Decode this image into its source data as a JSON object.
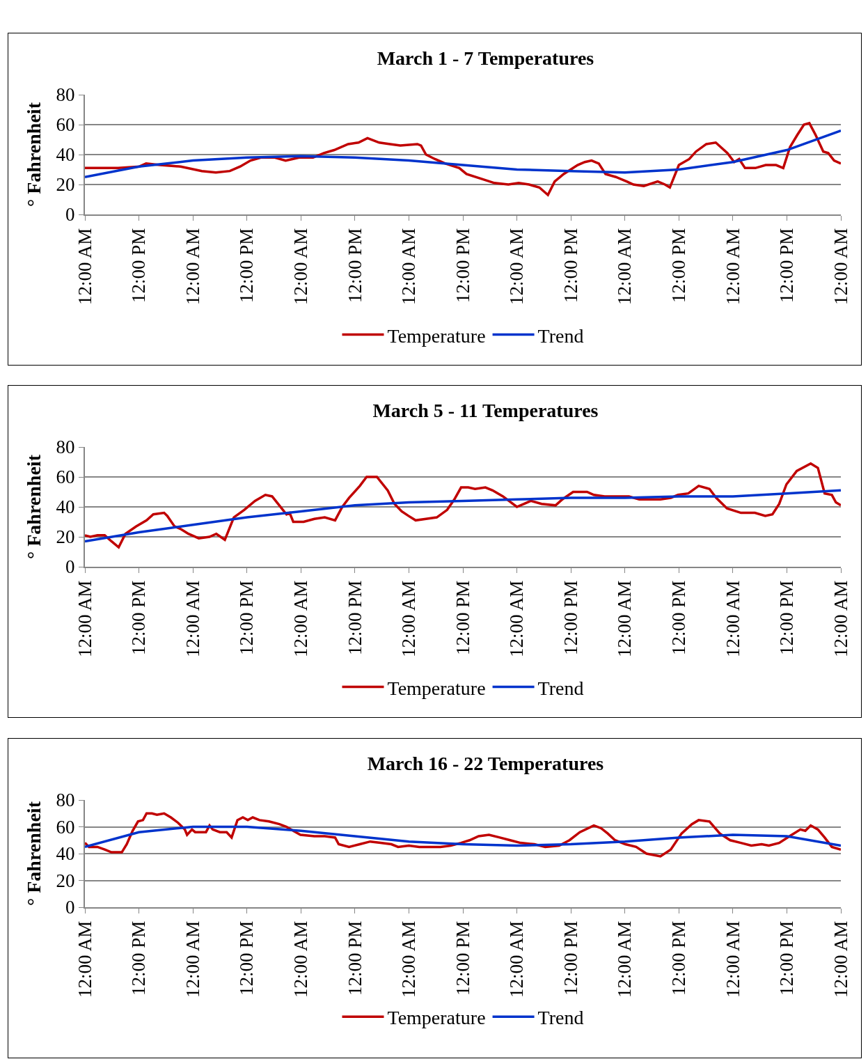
{
  "chart_data": [
    {
      "type": "line",
      "title": "March 1 - 7 Temperatures",
      "ylabel": "° Fahrenheit",
      "xlim": [
        "--03-01T00:00",
        "--03-08T00:00"
      ],
      "ylim": [
        0,
        80
      ],
      "yticks": [
        0,
        20,
        40,
        60,
        80
      ],
      "xticks": [
        {
          "value": "--03-01T00:00",
          "label": "12:00 AM"
        },
        {
          "value": "--03-01T12:00",
          "label": "12:00 PM"
        },
        {
          "value": "--03-02T00:00",
          "label": "12:00 AM"
        },
        {
          "value": "--03-02T12:00",
          "label": "12:00 PM"
        },
        {
          "value": "--03-03T00:00",
          "label": "12:00 AM"
        },
        {
          "value": "--03-03T12:00",
          "label": "12:00 PM"
        },
        {
          "value": "--03-04T00:00",
          "label": "12:00 AM"
        },
        {
          "value": "--03-04T12:00",
          "label": "12:00 PM"
        },
        {
          "value": "--03-05T00:00",
          "label": "12:00 AM"
        },
        {
          "value": "--03-05T12:00",
          "label": "12:00 PM"
        },
        {
          "value": "--03-06T00:00",
          "label": "12:00 AM"
        },
        {
          "value": "--03-06T12:00",
          "label": "12:00 PM"
        },
        {
          "value": "--03-07T00:00",
          "label": "12:00 AM"
        },
        {
          "value": "--03-07T12:00",
          "label": "12:00 PM"
        },
        {
          "value": "--03-08T00:00",
          "label": "12:00 AM"
        }
      ],
      "grid": "y",
      "legend": "bottom",
      "marker": "none",
      "line_style": "solid",
      "series": [
        {
          "name": "Temperature",
          "color": "#c00000",
          "x": [
            "--03-01T00:00",
            "--03-01T07:24",
            "--03-01T12:06",
            "--03-01T13:36",
            "--03-01T16:42",
            "--03-01T21:18",
            "--03-02T02:00",
            "--03-02T05:06",
            "--03-02T08:12",
            "--03-02T10:30",
            "--03-02T12:48",
            "--03-02T15:06",
            "--03-02T18:12",
            "--03-02T20:36",
            "--03-02T22:06",
            "--03-02T23:36",
            "--03-03T02:42",
            "--03-03T05:06",
            "--03-03T07:24",
            "--03-03T10:30",
            "--03-03T12:48",
            "--03-03T14:48",
            "--03-03T17:24",
            "--03-03T19:48",
            "--03-03T22:06",
            "--03-04T01:54",
            "--03-04T02:42",
            "--03-04T03:48",
            "--03-04T05:48",
            "--03-04T08:06",
            "--03-04T11:12",
            "--03-04T12:48",
            "--03-04T15:54",
            "--03-04T19:00",
            "--03-04T22:06",
            "--03-05T00:24",
            "--03-05T02:42",
            "--03-05T05:00",
            "--03-05T06:54",
            "--03-05T08:24",
            "--03-05T10:24",
            "--03-05T13:30",
            "--03-05T15:06",
            "--03-05T16:36",
            "--03-05T18:12",
            "--03-05T19:42",
            "--03-05T22:00",
            "--03-06T00:24",
            "--03-06T01:54",
            "--03-06T04:12",
            "--03-06T07:18",
            "--03-06T08:54",
            "--03-06T10:00",
            "--03-06T12:00",
            "--03-06T14:18",
            "--03-06T15:48",
            "--03-06T18:06",
            "--03-06T20:12",
            "--03-06T22:48",
            "--03-07T00:18",
            "--03-07T01:24",
            "--03-07T02:42",
            "--03-07T05:00",
            "--03-07T07:18",
            "--03-07T09:36",
            "--03-07T11:12",
            "--03-07T12:42",
            "--03-07T14:18",
            "--03-07T15:48",
            "--03-07T17:00",
            "--03-07T18:24",
            "--03-07T20:06",
            "--03-07T21:12",
            "--03-07T22:30",
            "--03-08T00:00"
          ],
          "values": [
            31,
            31,
            32,
            34,
            33,
            32,
            29,
            28,
            29,
            32,
            36,
            38,
            38,
            36,
            37,
            38,
            38,
            41,
            43,
            47,
            48,
            51,
            48,
            47,
            46,
            47,
            46,
            40,
            37,
            34,
            31,
            27,
            24,
            21,
            20,
            21,
            20,
            18,
            13,
            22,
            27,
            33,
            35,
            36,
            34,
            27,
            25,
            22,
            20,
            19,
            22,
            20,
            18,
            33,
            37,
            42,
            47,
            48,
            41,
            35,
            37,
            31,
            31,
            33,
            33,
            31,
            45,
            53,
            60,
            61,
            53,
            42,
            41,
            36,
            34
          ]
        },
        {
          "name": "Trend",
          "color": "#0033cc",
          "x": [
            "--03-01T00:00",
            "--03-01T12:00",
            "--03-02T00:00",
            "--03-02T12:00",
            "--03-03T00:00",
            "--03-03T12:00",
            "--03-04T00:00",
            "--03-04T12:00",
            "--03-05T00:00",
            "--03-05T12:00",
            "--03-06T00:00",
            "--03-06T12:00",
            "--03-07T00:00",
            "--03-07T12:00",
            "--03-08T00:00"
          ],
          "values": [
            25,
            32,
            36,
            38,
            39,
            38,
            36,
            33,
            30,
            29,
            28,
            30,
            35,
            43,
            56
          ]
        }
      ]
    },
    {
      "type": "line",
      "title": "March 5 - 11 Temperatures",
      "ylabel": "° Fahrenheit",
      "xlim": [
        "--03-05T00:00",
        "--03-12T00:00"
      ],
      "ylim": [
        0,
        80
      ],
      "yticks": [
        0,
        20,
        40,
        60,
        80
      ],
      "xticks": [
        {
          "value": "--03-05T00:00",
          "label": "12:00 AM"
        },
        {
          "value": "--03-05T12:00",
          "label": "12:00 PM"
        },
        {
          "value": "--03-06T00:00",
          "label": "12:00 AM"
        },
        {
          "value": "--03-06T12:00",
          "label": "12:00 PM"
        },
        {
          "value": "--03-07T00:00",
          "label": "12:00 AM"
        },
        {
          "value": "--03-07T12:00",
          "label": "12:00 PM"
        },
        {
          "value": "--03-08T00:00",
          "label": "12:00 AM"
        },
        {
          "value": "--03-08T12:00",
          "label": "12:00 PM"
        },
        {
          "value": "--03-09T00:00",
          "label": "12:00 AM"
        },
        {
          "value": "--03-09T12:00",
          "label": "12:00 PM"
        },
        {
          "value": "--03-10T00:00",
          "label": "12:00 AM"
        },
        {
          "value": "--03-10T12:00",
          "label": "12:00 PM"
        },
        {
          "value": "--03-11T00:00",
          "label": "12:00 AM"
        },
        {
          "value": "--03-11T12:00",
          "label": "12:00 PM"
        },
        {
          "value": "--03-12T00:00",
          "label": "12:00 AM"
        }
      ],
      "grid": "y",
      "legend": "bottom",
      "marker": "none",
      "line_style": "solid",
      "series": [
        {
          "name": "Temperature",
          "color": "#c00000",
          "x": [
            "--03-05T00:00",
            "--03-05T01:12",
            "--03-05T02:48",
            "--03-05T04:24",
            "--03-05T05:54",
            "--03-05T07:30",
            "--03-05T09:00",
            "--03-05T11:24",
            "--03-05T13:42",
            "--03-05T15:12",
            "--03-05T17:36",
            "--03-05T18:18",
            "--03-05T19:54",
            "--03-05T21:24",
            "--03-05T23:00",
            "--03-06T01:18",
            "--03-06T03:42",
            "--03-06T05:12",
            "--03-06T07:06",
            "--03-06T09:06",
            "--03-06T11:24",
            "--03-06T13:48",
            "--03-06T16:06",
            "--03-06T17:36",
            "--03-06T19:12",
            "--03-06T20:48",
            "--03-06T21:30",
            "--03-06T22:18",
            "--03-07T00:36",
            "--03-07T03:00",
            "--03-07T05:18",
            "--03-07T07:36",
            "--03-07T09:12",
            "--03-07T10:42",
            "--03-07T13:06",
            "--03-07T14:36",
            "--03-07T16:54",
            "--03-07T19:18",
            "--03-07T20:48",
            "--03-07T22:24",
            "--03-07T23:54",
            "--03-08T01:30",
            "--03-08T03:48",
            "--03-08T06:12",
            "--03-08T08:30",
            "--03-08T10:06",
            "--03-08T11:36",
            "--03-08T13:12",
            "--03-08T14:42",
            "--03-08T17:00",
            "--03-08T18:36",
            "--03-08T20:54",
            "--03-09T00:00",
            "--03-09T01:36",
            "--03-09T03:06",
            "--03-09T05:30",
            "--03-09T08:36",
            "--03-09T10:06",
            "--03-09T12:30",
            "--03-09T15:36",
            "--03-09T17:06",
            "--03-09T19:30",
            "--03-09T21:48",
            "--03-10T00:54",
            "--03-10T03:12",
            "--03-10T05:36",
            "--03-10T07:54",
            "--03-10T10:12",
            "--03-10T11:48",
            "--03-10T14:06",
            "--03-10T16:24",
            "--03-10T18:48",
            "--03-10T20:18",
            "--03-10T22:42",
            "--03-11T01:48",
            "--03-11T04:54",
            "--03-11T07:12",
            "--03-11T08:48",
            "--03-11T10:18",
            "--03-11T11:54",
            "--03-11T14:12",
            "--03-11T17:18",
            "--03-11T18:54",
            "--03-11T20:24",
            "--03-11T22:00",
            "--03-11T22:54",
            "--03-12T00:00"
          ],
          "values": [
            21,
            20,
            21,
            21,
            17,
            13,
            22,
            27,
            31,
            35,
            36,
            34,
            27,
            25,
            22,
            19,
            20,
            22,
            18,
            33,
            38,
            44,
            48,
            47,
            41,
            35,
            36,
            30,
            30,
            32,
            33,
            31,
            40,
            46,
            54,
            60,
            60,
            51,
            42,
            37,
            34,
            31,
            32,
            33,
            38,
            45,
            53,
            53,
            52,
            53,
            51,
            47,
            40,
            42,
            44,
            42,
            41,
            45,
            50,
            50,
            48,
            47,
            47,
            47,
            45,
            45,
            45,
            46,
            48,
            49,
            54,
            52,
            46,
            39,
            36,
            36,
            34,
            35,
            42,
            55,
            64,
            69,
            66,
            49,
            48,
            43,
            41
          ]
        },
        {
          "name": "Trend",
          "color": "#0033cc",
          "x": [
            "--03-05T00:00",
            "--03-05T12:00",
            "--03-06T00:00",
            "--03-06T12:00",
            "--03-07T00:00",
            "--03-07T12:00",
            "--03-08T00:00",
            "--03-08T12:00",
            "--03-09T00:00",
            "--03-09T12:00",
            "--03-10T00:00",
            "--03-10T12:00",
            "--03-11T00:00",
            "--03-11T12:00",
            "--03-12T00:00"
          ],
          "values": [
            17,
            23,
            28,
            33,
            37,
            41,
            43,
            44,
            45,
            46,
            46,
            47,
            47,
            49,
            51
          ]
        }
      ]
    },
    {
      "type": "line",
      "title": "March 16 - 22 Temperatures",
      "ylabel": "° Fahrenheit",
      "xlim": [
        "--03-16T00:00",
        "--03-23T00:00"
      ],
      "ylim": [
        0,
        80
      ],
      "yticks": [
        0,
        20,
        40,
        60,
        80
      ],
      "xticks": [
        {
          "value": "--03-16T00:00",
          "label": "12:00 AM"
        },
        {
          "value": "--03-16T12:00",
          "label": "12:00 PM"
        },
        {
          "value": "--03-17T00:00",
          "label": "12:00 AM"
        },
        {
          "value": "--03-17T12:00",
          "label": "12:00 PM"
        },
        {
          "value": "--03-18T00:00",
          "label": "12:00 AM"
        },
        {
          "value": "--03-18T12:00",
          "label": "12:00 PM"
        },
        {
          "value": "--03-19T00:00",
          "label": "12:00 AM"
        },
        {
          "value": "--03-19T12:00",
          "label": "12:00 PM"
        },
        {
          "value": "--03-20T00:00",
          "label": "12:00 AM"
        },
        {
          "value": "--03-20T12:00",
          "label": "12:00 PM"
        },
        {
          "value": "--03-21T00:00",
          "label": "12:00 AM"
        },
        {
          "value": "--03-21T12:00",
          "label": "12:00 PM"
        },
        {
          "value": "--03-22T00:00",
          "label": "12:00 AM"
        },
        {
          "value": "--03-22T12:00",
          "label": "12:00 PM"
        },
        {
          "value": "--03-23T00:00",
          "label": "12:00 AM"
        }
      ],
      "grid": "y",
      "legend": "bottom",
      "marker": "none",
      "line_style": "solid",
      "series": [
        {
          "name": "Temperature",
          "color": "#c00000",
          "x": [
            "--03-16T00:00",
            "--03-16T00:54",
            "--03-16T02:48",
            "--03-16T04:24",
            "--03-16T05:54",
            "--03-16T08:12",
            "--03-16T09:18",
            "--03-16T10:36",
            "--03-16T11:48",
            "--03-16T12:54",
            "--03-16T13:42",
            "--03-16T14:54",
            "--03-16T16:00",
            "--03-16T17:36",
            "--03-16T19:06",
            "--03-16T20:42",
            "--03-16T22:12",
            "--03-16T22:42",
            "--03-16T23:48",
            "--03-17T00:30",
            "--03-17T02:54",
            "--03-17T03:42",
            "--03-17T04:24",
            "--03-17T06:00",
            "--03-17T07:30",
            "--03-17T08:36",
            "--03-17T09:54",
            "--03-17T11:06",
            "--03-17T12:12",
            "--03-17T13:18",
            "--03-17T14:48",
            "--03-17T16:54",
            "--03-17T19:12",
            "--03-17T20:48",
            "--03-17T22:18",
            "--03-17T23:54",
            "--03-18T03:00",
            "--03-18T05:18",
            "--03-18T07:36",
            "--03-18T08:24",
            "--03-18T10:42",
            "--03-18T13:06",
            "--03-18T15:24",
            "--03-18T17:42",
            "--03-18T20:06",
            "--03-18T21:36",
            "--03-19T00:00",
            "--03-19T02:18",
            "--03-19T04:36",
            "--03-19T07:00",
            "--03-19T09:18",
            "--03-19T11:36",
            "--03-19T13:30",
            "--03-19T15:30",
            "--03-19T17:48",
            "--03-19T20:12",
            "--03-19T22:30",
            "--03-20T00:48",
            "--03-20T03:54",
            "--03-20T06:18",
            "--03-20T09:24",
            "--03-20T11:42",
            "--03-20T14:00",
            "--03-20T17:06",
            "--03-20T18:42",
            "--03-20T20:12",
            "--03-20T21:48",
            "--03-21T00:06",
            "--03-21T02:30",
            "--03-21T04:48",
            "--03-21T07:54",
            "--03-21T10:12",
            "--03-21T12:36",
            "--03-21T14:54",
            "--03-21T16:24",
            "--03-21T18:48",
            "--03-21T21:06",
            "--03-21T23:24",
            "--03-22T01:48",
            "--03-22T04:06",
            "--03-22T06:24",
            "--03-22T08:00",
            "--03-22T10:18",
            "--03-22T12:36",
            "--03-22T15:00",
            "--03-22T16:06",
            "--03-22T17:18",
            "--03-22T18:54",
            "--03-22T20:24",
            "--03-22T22:00",
            "--03-23T00:00"
          ],
          "values": [
            48,
            45,
            45,
            43,
            41,
            41,
            47,
            57,
            64,
            65,
            70,
            70,
            69,
            70,
            67,
            63,
            58,
            54,
            58,
            56,
            56,
            61,
            58,
            56,
            56,
            52,
            65,
            67,
            65,
            67,
            65,
            64,
            62,
            60,
            57,
            54,
            53,
            53,
            52,
            47,
            45,
            47,
            49,
            48,
            47,
            45,
            46,
            45,
            45,
            45,
            46,
            48,
            50,
            53,
            54,
            52,
            50,
            48,
            47,
            45,
            46,
            50,
            56,
            61,
            59,
            55,
            50,
            47,
            45,
            40,
            38,
            43,
            55,
            62,
            65,
            64,
            55,
            50,
            48,
            46,
            47,
            46,
            48,
            53,
            58,
            57,
            61,
            58,
            52,
            45,
            43
          ]
        },
        {
          "name": "Trend",
          "color": "#0033cc",
          "x": [
            "--03-16T00:00",
            "--03-16T12:00",
            "--03-17T00:00",
            "--03-17T12:00",
            "--03-18T00:00",
            "--03-18T12:00",
            "--03-19T00:00",
            "--03-19T12:00",
            "--03-20T00:00",
            "--03-20T12:00",
            "--03-21T00:00",
            "--03-21T12:00",
            "--03-22T00:00",
            "--03-22T12:00",
            "--03-23T00:00"
          ],
          "values": [
            45,
            56,
            60,
            60,
            57,
            53,
            49,
            47,
            46,
            47,
            49,
            52,
            54,
            53,
            46
          ]
        }
      ]
    }
  ]
}
